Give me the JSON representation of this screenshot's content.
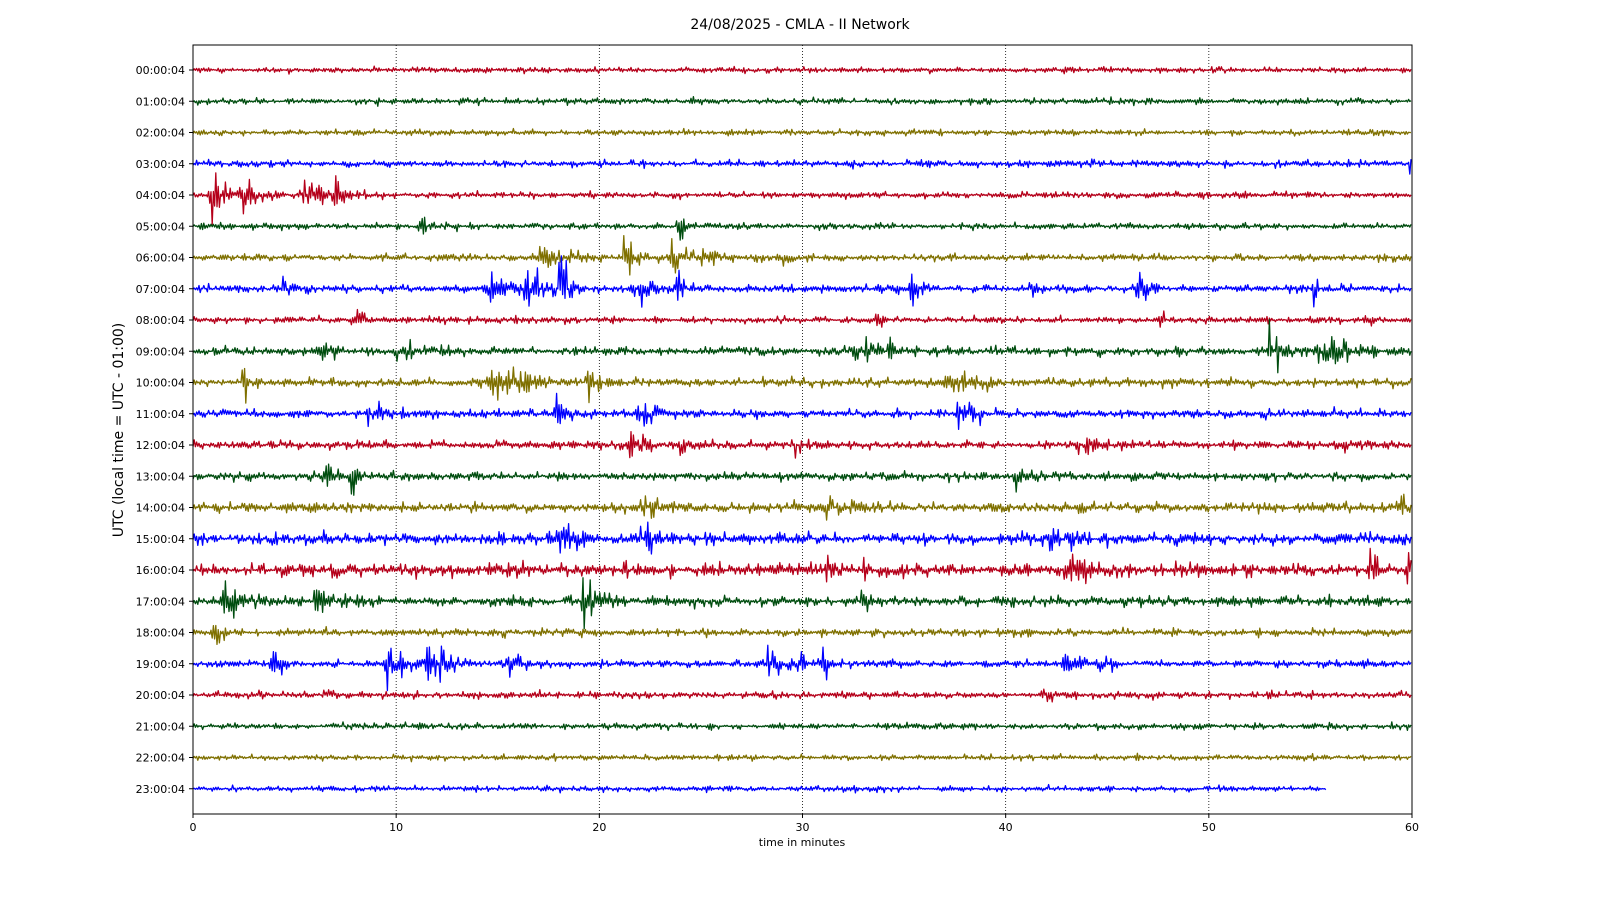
{
  "chart_data": {
    "type": "line",
    "title": "24/08/2025 - CMLA - II Network",
    "xlabel": "time in minutes",
    "ylabel": "UTC (local time = UTC - 01:00)",
    "xlim": [
      0,
      60
    ],
    "x_ticks": [
      "0",
      "10",
      "20",
      "30",
      "40",
      "50",
      "60"
    ],
    "x_tick_values": [
      0,
      10,
      20,
      30,
      40,
      50,
      60
    ],
    "grid": "vertical dotted at x ticks",
    "colors": [
      "#b5001a",
      "#004d0f",
      "#7f7000",
      "#0000ff"
    ],
    "series": [
      {
        "label": "00:00:04",
        "end": 60,
        "noise": 0.45,
        "events": []
      },
      {
        "label": "01:00:04",
        "end": 60,
        "noise": 0.5,
        "events": []
      },
      {
        "label": "02:00:04",
        "end": 60,
        "noise": 0.45,
        "events": []
      },
      {
        "label": "03:00:04",
        "end": 60,
        "noise": 0.55,
        "events": [
          [
            59.8,
            1.2,
            0.3
          ]
        ]
      },
      {
        "label": "04:00:04",
        "end": 60,
        "noise": 0.5,
        "events": [
          [
            0.8,
            4.0,
            1.2
          ],
          [
            2.5,
            3.0,
            0.6
          ],
          [
            5.5,
            2.5,
            1.0
          ],
          [
            7.0,
            3.0,
            0.8
          ]
        ]
      },
      {
        "label": "05:00:04",
        "end": 60,
        "noise": 0.5,
        "events": [
          [
            11.0,
            1.6,
            0.8
          ],
          [
            23.9,
            4.5,
            0.25
          ]
        ]
      },
      {
        "label": "06:00:04",
        "end": 60,
        "noise": 0.55,
        "events": [
          [
            17.0,
            1.6,
            1.5
          ],
          [
            21.2,
            3.0,
            0.6
          ],
          [
            23.5,
            4.0,
            0.6
          ],
          [
            25.0,
            1.8,
            1.0
          ],
          [
            28.8,
            2.0,
            0.5
          ]
        ]
      },
      {
        "label": "07:00:04",
        "end": 60,
        "noise": 0.6,
        "events": [
          [
            4.0,
            1.5,
            0.8
          ],
          [
            14.5,
            2.5,
            1.2
          ],
          [
            16.3,
            4.0,
            1.0
          ],
          [
            18.0,
            5.5,
            0.6
          ],
          [
            21.5,
            2.5,
            1.2
          ],
          [
            23.8,
            4.5,
            0.3
          ],
          [
            35.3,
            2.2,
            0.5
          ],
          [
            41.2,
            1.6,
            0.4
          ],
          [
            46.5,
            3.0,
            0.6
          ],
          [
            55.1,
            2.0,
            0.4
          ]
        ]
      },
      {
        "label": "08:00:04",
        "end": 60,
        "noise": 0.55,
        "events": [
          [
            7.9,
            2.2,
            0.5
          ],
          [
            33.6,
            1.8,
            0.3
          ],
          [
            47.6,
            1.5,
            0.3
          ],
          [
            57.7,
            1.5,
            0.3
          ]
        ]
      },
      {
        "label": "09:00:04",
        "end": 60,
        "noise": 0.7,
        "events": [
          [
            6.2,
            2.0,
            0.5
          ],
          [
            10.0,
            1.6,
            1.0
          ],
          [
            32.5,
            2.5,
            0.8
          ],
          [
            34.2,
            4.0,
            0.3
          ],
          [
            53.0,
            4.5,
            0.6
          ],
          [
            55.3,
            5.0,
            1.4
          ]
        ]
      },
      {
        "label": "10:00:04",
        "end": 60,
        "noise": 0.7,
        "events": [
          [
            2.4,
            5.0,
            0.25
          ],
          [
            14.5,
            3.2,
            1.2
          ],
          [
            16.0,
            2.5,
            0.8
          ],
          [
            19.2,
            2.2,
            0.8
          ],
          [
            37.0,
            1.8,
            1.5
          ]
        ]
      },
      {
        "label": "11:00:04",
        "end": 60,
        "noise": 0.7,
        "events": [
          [
            8.5,
            1.6,
            1.2
          ],
          [
            17.8,
            2.2,
            0.7
          ],
          [
            21.8,
            2.4,
            0.8
          ],
          [
            37.6,
            3.2,
            0.8
          ]
        ]
      },
      {
        "label": "12:00:04",
        "end": 60,
        "noise": 0.7,
        "events": [
          [
            21.5,
            2.0,
            1.0
          ],
          [
            24.0,
            1.8,
            0.4
          ],
          [
            29.6,
            2.2,
            0.4
          ],
          [
            43.5,
            1.6,
            1.0
          ],
          [
            56.3,
            2.0,
            0.4
          ]
        ]
      },
      {
        "label": "13:00:04",
        "end": 60,
        "noise": 0.7,
        "events": [
          [
            6.5,
            1.8,
            1.2
          ],
          [
            7.8,
            2.5,
            0.3
          ],
          [
            40.5,
            1.5,
            1.0
          ]
        ]
      },
      {
        "label": "14:00:04",
        "end": 60,
        "noise": 0.8,
        "events": [
          [
            22.0,
            1.6,
            1.5
          ],
          [
            31.0,
            1.5,
            1.5
          ],
          [
            59.5,
            1.6,
            0.6
          ]
        ]
      },
      {
        "label": "15:00:04",
        "end": 60,
        "noise": 0.9,
        "events": [
          [
            17.5,
            1.8,
            1.5
          ],
          [
            21.8,
            2.8,
            1.2
          ],
          [
            41.8,
            2.0,
            1.5
          ]
        ]
      },
      {
        "label": "16:00:04",
        "end": 60,
        "noise": 1.0,
        "events": [
          [
            21.2,
            2.0,
            0.4
          ],
          [
            31.2,
            3.0,
            0.4
          ],
          [
            33.0,
            2.8,
            0.5
          ],
          [
            43.0,
            2.0,
            1.2
          ],
          [
            57.9,
            5.0,
            0.25
          ],
          [
            59.8,
            3.5,
            0.3
          ]
        ]
      },
      {
        "label": "17:00:04",
        "end": 60,
        "noise": 0.8,
        "events": [
          [
            1.5,
            2.4,
            1.2
          ],
          [
            6.0,
            3.2,
            0.8
          ],
          [
            19.2,
            3.2,
            0.8
          ],
          [
            32.8,
            2.2,
            0.4
          ]
        ]
      },
      {
        "label": "18:00:04",
        "end": 60,
        "noise": 0.6,
        "events": [
          [
            1.0,
            2.8,
            0.4
          ]
        ]
      },
      {
        "label": "19:00:04",
        "end": 60,
        "noise": 0.6,
        "events": [
          [
            3.8,
            3.2,
            0.5
          ],
          [
            9.5,
            3.0,
            1.2
          ],
          [
            11.5,
            3.5,
            1.0
          ],
          [
            15.5,
            1.6,
            0.8
          ],
          [
            28.0,
            2.0,
            0.8
          ],
          [
            29.3,
            2.4,
            0.6
          ],
          [
            31.0,
            3.0,
            0.3
          ],
          [
            42.8,
            2.4,
            0.5
          ],
          [
            44.5,
            2.2,
            0.6
          ]
        ]
      },
      {
        "label": "20:00:04",
        "end": 60,
        "noise": 0.55,
        "events": [
          [
            6.5,
            1.5,
            0.3
          ],
          [
            41.8,
            1.5,
            0.3
          ]
        ]
      },
      {
        "label": "21:00:04",
        "end": 60,
        "noise": 0.5,
        "events": []
      },
      {
        "label": "22:00:04",
        "end": 60,
        "noise": 0.45,
        "events": []
      },
      {
        "label": "23:00:04",
        "end": 55.8,
        "noise": 0.45,
        "events": []
      }
    ]
  }
}
